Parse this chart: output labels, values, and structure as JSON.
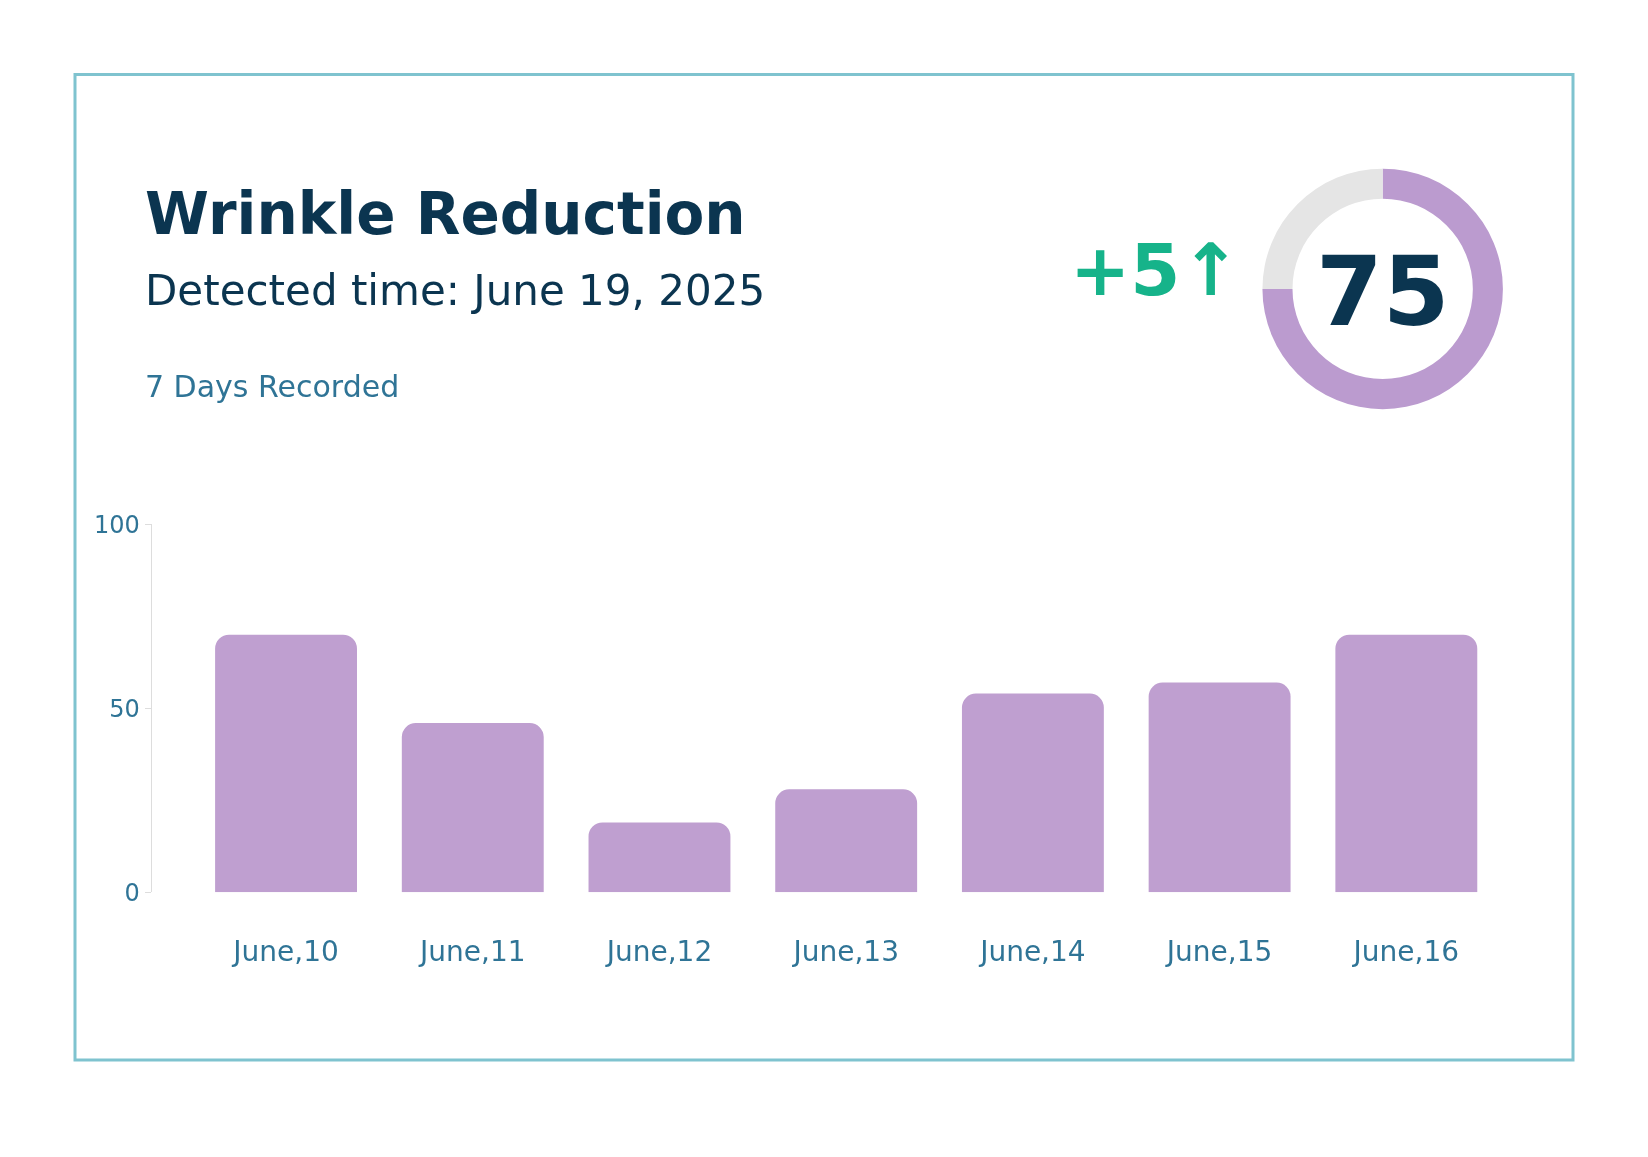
{
  "chart_data": [
    {
      "type": "bar",
      "title": "Wrinkle Reduction",
      "subtitle": "Detected time: June 19, 2025",
      "annotations": [
        "7 Days Recorded"
      ],
      "categories": [
        "June,10",
        "June,11",
        "June,12",
        "June,13",
        "June,14",
        "June,15",
        "June,16"
      ],
      "values": [
        70,
        46,
        19,
        28,
        54,
        57,
        70
      ],
      "color": "#bf9fd0",
      "ylim": [
        0,
        100
      ],
      "yticks": [
        0,
        50,
        100
      ]
    },
    {
      "type": "donut",
      "categories": [
        null,
        null
      ],
      "values": [
        75,
        25
      ],
      "colors": [
        "#bb9bcf",
        "#e5e5e5"
      ],
      "annotations": [
        "+5↑",
        "75"
      ]
    }
  ]
}
